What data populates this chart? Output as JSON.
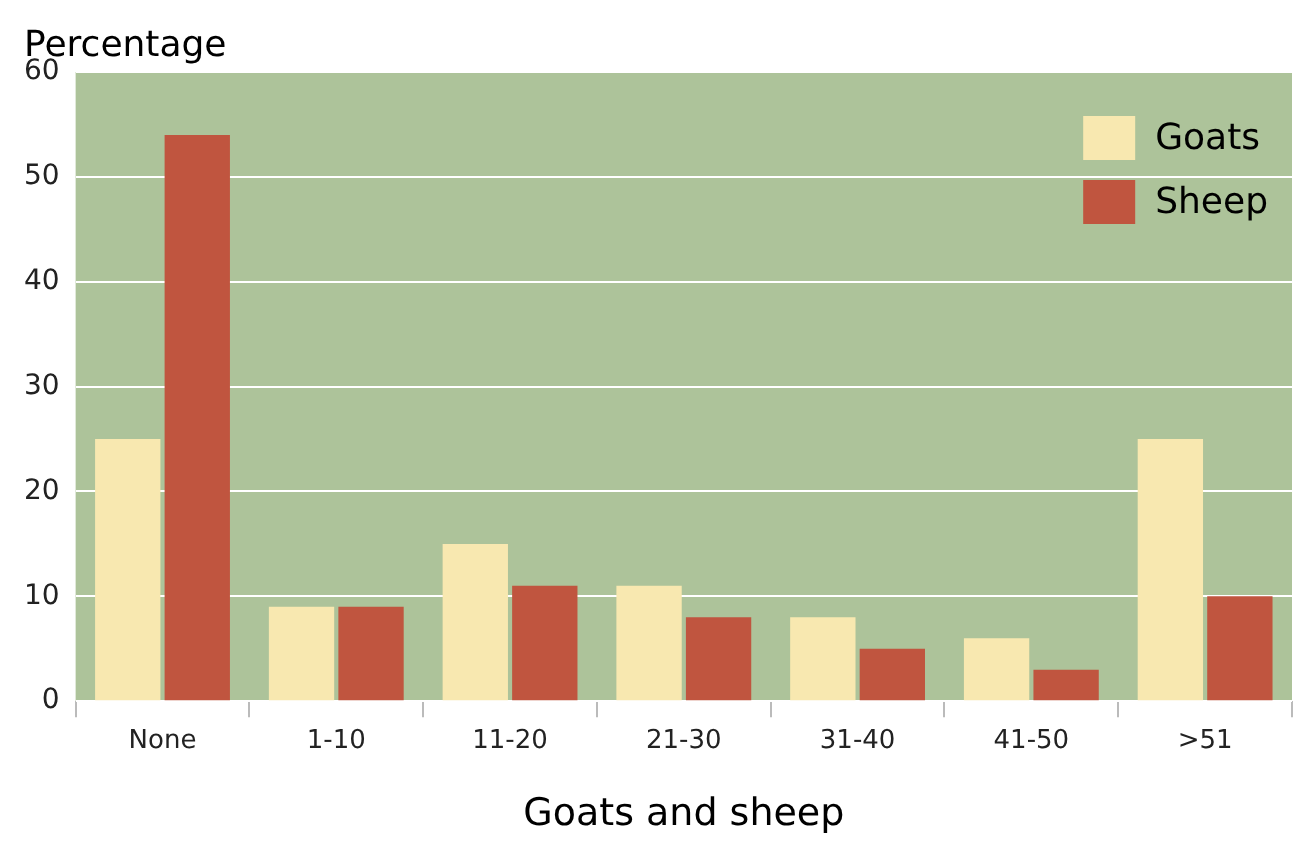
{
  "chart_data": {
    "type": "bar",
    "xlabel": "Goats and sheep",
    "ylabel": "Percentage",
    "categories": [
      "None",
      "1-10",
      "11-20",
      "21-30",
      "31-40",
      "41-50",
      ">51"
    ],
    "series": [
      {
        "name": "Goats",
        "color": "#f8e8b0",
        "values": [
          25,
          9,
          15,
          11,
          8,
          6,
          25
        ]
      },
      {
        "name": "Sheep",
        "color": "#c0553f",
        "values": [
          54,
          9,
          11,
          8,
          5,
          3,
          10
        ]
      }
    ],
    "ylim": [
      0,
      60
    ],
    "yticks": [
      0,
      10,
      20,
      30,
      40,
      50,
      60
    ],
    "grid": "y",
    "legend": "top right"
  }
}
